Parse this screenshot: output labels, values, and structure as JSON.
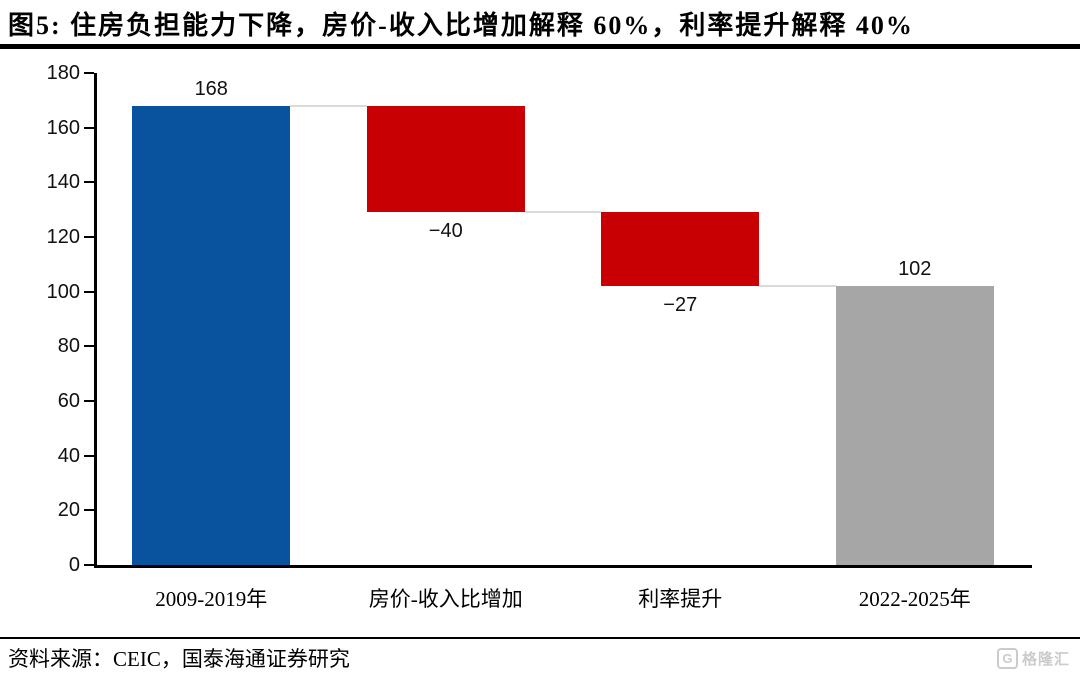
{
  "title": "图5:  住房负担能力下降，房价-收入比增加解释 60%，利率提升解释 40%",
  "source": "资料来源：CEIC，国泰海通证券研究",
  "watermark": {
    "icon_letter": "G",
    "wordmark": "格隆汇"
  },
  "colors": {
    "bar_blue": "#08529E",
    "bar_red": "#C90003",
    "bar_gray": "#A6A6A6",
    "connector": "#D9D9D9",
    "axis": "#000000"
  },
  "chart_data": {
    "type": "waterfall",
    "categories": [
      "2009-2019年",
      "房价-收入比增加",
      "利率提升",
      "2022-2025年"
    ],
    "segments": [
      {
        "category": "2009-2019年",
        "start": 0,
        "end": 168,
        "label": "168",
        "label_position": "above",
        "color": "#08529E",
        "role": "total"
      },
      {
        "category": "房价-收入比增加",
        "start": 168,
        "end": 129,
        "label": "−40",
        "label_position": "below",
        "color": "#C90003",
        "role": "decrease"
      },
      {
        "category": "利率提升",
        "start": 129,
        "end": 102,
        "label": "−27",
        "label_position": "below",
        "color": "#C90003",
        "role": "decrease"
      },
      {
        "category": "2022-2025年",
        "start": 0,
        "end": 102,
        "label": "102",
        "label_position": "above",
        "color": "#A6A6A6",
        "role": "total"
      }
    ],
    "ylim": [
      0,
      180
    ],
    "yticks": [
      0,
      20,
      40,
      60,
      80,
      100,
      120,
      140,
      160,
      180
    ],
    "grid": false,
    "legend": "none",
    "connector_color": "#D9D9D9",
    "axis_color": "#000000"
  }
}
